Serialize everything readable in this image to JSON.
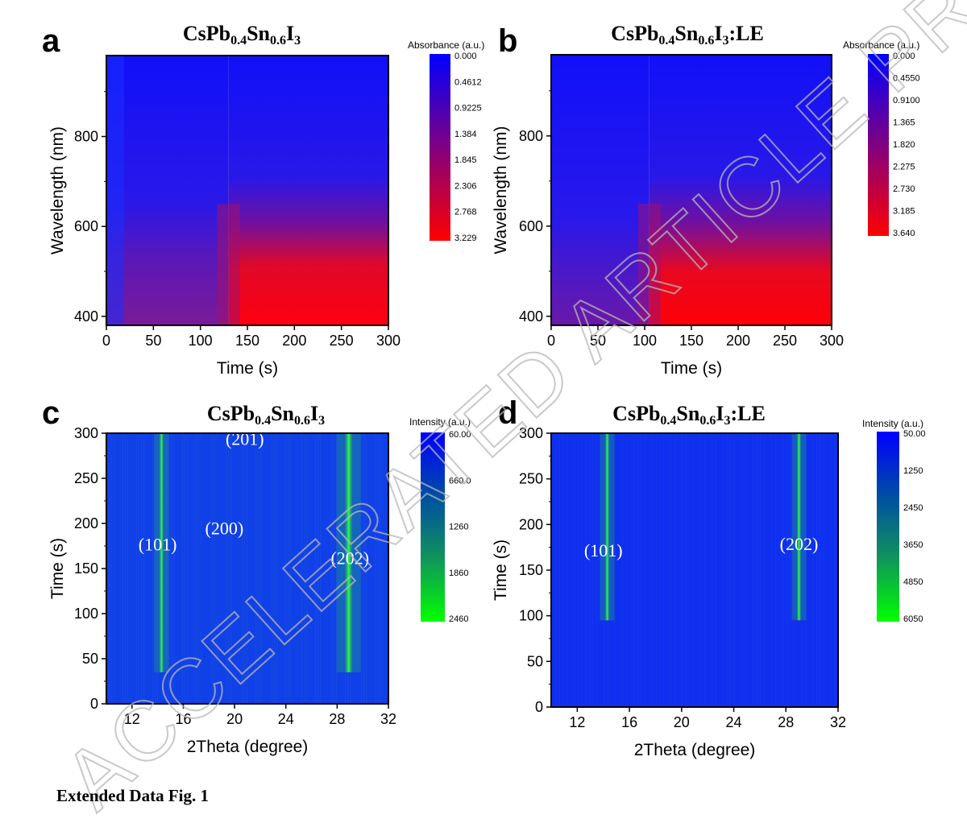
{
  "figure_caption": "Extended Data Fig. 1",
  "watermark": "ACCELERATED ARTICLE PREVIEW",
  "colors": {
    "absorbance_low": "#0000ff",
    "absorbance_high": "#ff0000",
    "intensity_low": "#0a32f0",
    "intensity_high": "#00ff00"
  },
  "chart_data": [
    {
      "panel_label": "a",
      "type": "heatmap",
      "title_base": "CsPb",
      "title_parts": [
        {
          "t": "CsPb",
          "sub": false
        },
        {
          "t": "0.4",
          "sub": true
        },
        {
          "t": "Sn",
          "sub": false
        },
        {
          "t": "0.6",
          "sub": true
        },
        {
          "t": "I",
          "sub": false
        },
        {
          "t": "3",
          "sub": true
        }
      ],
      "xlabel": "Time (s)",
      "ylabel": "Wavelength (nm)",
      "xlim": [
        0,
        300
      ],
      "ylim": [
        380,
        980
      ],
      "xticks": [
        "0",
        "50",
        "100",
        "150",
        "200",
        "250",
        "300"
      ],
      "yticks": [
        "400",
        "600",
        "800"
      ],
      "colorbar_title": "Absorbance (a.u.)",
      "colorbar_labels": [
        "0.000",
        "0.4612",
        "0.9225",
        "1.384",
        "1.845",
        "2.306",
        "2.768",
        "3.229"
      ],
      "z_range": [
        0.0,
        3.229
      ],
      "description_regions": [
        {
          "time_range": [
            0,
            130
          ],
          "wavelength_range": [
            380,
            580
          ],
          "absorbance": 1.6
        },
        {
          "time_range": [
            130,
            300
          ],
          "wavelength_range": [
            380,
            550
          ],
          "absorbance": 3.229
        },
        {
          "time_range": [
            0,
            300
          ],
          "wavelength_range": [
            600,
            980
          ],
          "absorbance": 0.0
        }
      ]
    },
    {
      "panel_label": "b",
      "type": "heatmap",
      "title_parts": [
        {
          "t": "CsPb",
          "sub": false
        },
        {
          "t": "0.4",
          "sub": true
        },
        {
          "t": "Sn",
          "sub": false
        },
        {
          "t": "0.6",
          "sub": true
        },
        {
          "t": "I",
          "sub": false
        },
        {
          "t": "3",
          "sub": true
        },
        {
          "t": ":LE",
          "sub": false
        }
      ],
      "xlabel": "Time (s)",
      "ylabel": "Wavelength (nm)",
      "xlim": [
        0,
        300
      ],
      "ylim": [
        380,
        980
      ],
      "xticks": [
        "0",
        "50",
        "100",
        "150",
        "200",
        "250",
        "300"
      ],
      "yticks": [
        "400",
        "600",
        "800"
      ],
      "colorbar_title": "Absorbance (a.u.)",
      "colorbar_labels": [
        "0.000",
        "0.4550",
        "0.9100",
        "1.365",
        "1.820",
        "2.275",
        "2.730",
        "3.185",
        "3.640"
      ],
      "z_range": [
        0.0,
        3.64
      ],
      "description_regions": [
        {
          "time_range": [
            0,
            105
          ],
          "wavelength_range": [
            380,
            550
          ],
          "absorbance": 1.2
        },
        {
          "time_range": [
            105,
            300
          ],
          "wavelength_range": [
            380,
            540
          ],
          "absorbance": 3.64
        },
        {
          "time_range": [
            0,
            300
          ],
          "wavelength_range": [
            600,
            980
          ],
          "absorbance": 0.0
        }
      ]
    },
    {
      "panel_label": "c",
      "type": "heatmap",
      "title_parts": [
        {
          "t": "CsPb",
          "sub": false
        },
        {
          "t": "0.4",
          "sub": true
        },
        {
          "t": "Sn",
          "sub": false
        },
        {
          "t": "0.6",
          "sub": true
        },
        {
          "t": "I",
          "sub": false
        },
        {
          "t": "3",
          "sub": true
        }
      ],
      "xlabel": "2Theta (degree)",
      "ylabel": "Time (s)",
      "xlim": [
        10,
        32
      ],
      "ylim": [
        0,
        300
      ],
      "xticks": [
        "12",
        "16",
        "20",
        "24",
        "28",
        "32"
      ],
      "yticks": [
        "0",
        "50",
        "100",
        "150",
        "200",
        "250",
        "300"
      ],
      "colorbar_title": "Intensity (a.u.)",
      "colorbar_labels": [
        "60.00",
        "660.0",
        "1260",
        "1860",
        "2460"
      ],
      "z_range": [
        60,
        2460
      ],
      "peaks": [
        {
          "label": "(101)",
          "two_theta": 14.3,
          "onset_time": 35
        },
        {
          "label": "(202)",
          "two_theta": 28.9,
          "onset_time": 35
        }
      ],
      "annotations": [
        {
          "label": "(101)",
          "two_theta": 14.0,
          "time": 170
        },
        {
          "label": "(200)",
          "two_theta": 19.2,
          "time": 188
        },
        {
          "label": "(201)",
          "two_theta": 20.8,
          "time": 287
        },
        {
          "label": "(202)",
          "two_theta": 29.0,
          "time": 155
        }
      ]
    },
    {
      "panel_label": "d",
      "type": "heatmap",
      "title_parts": [
        {
          "t": "CsPb",
          "sub": false
        },
        {
          "t": "0.4",
          "sub": true
        },
        {
          "t": "Sn",
          "sub": false
        },
        {
          "t": "0.6",
          "sub": true
        },
        {
          "t": "I",
          "sub": false
        },
        {
          "t": "3",
          "sub": true
        },
        {
          "t": ":LE",
          "sub": false
        }
      ],
      "xlabel": "2Theta (degree)",
      "ylabel": "Time (s)",
      "xlim": [
        10,
        32
      ],
      "ylim": [
        0,
        300
      ],
      "xticks": [
        "12",
        "16",
        "20",
        "24",
        "28",
        "32"
      ],
      "yticks": [
        "0",
        "50",
        "100",
        "150",
        "200",
        "250",
        "300"
      ],
      "colorbar_title": "Intensity (a.u.)",
      "colorbar_labels": [
        "50.00",
        "1250",
        "2450",
        "3650",
        "4850",
        "6050"
      ],
      "z_range": [
        50,
        6050
      ],
      "peaks": [
        {
          "label": "(101)",
          "two_theta": 14.3,
          "onset_time": 95
        },
        {
          "label": "(202)",
          "two_theta": 29.0,
          "onset_time": 95
        }
      ],
      "annotations": [
        {
          "label": "(101)",
          "two_theta": 14.0,
          "time": 165
        },
        {
          "label": "(202)",
          "two_theta": 29.0,
          "time": 172
        }
      ]
    }
  ]
}
